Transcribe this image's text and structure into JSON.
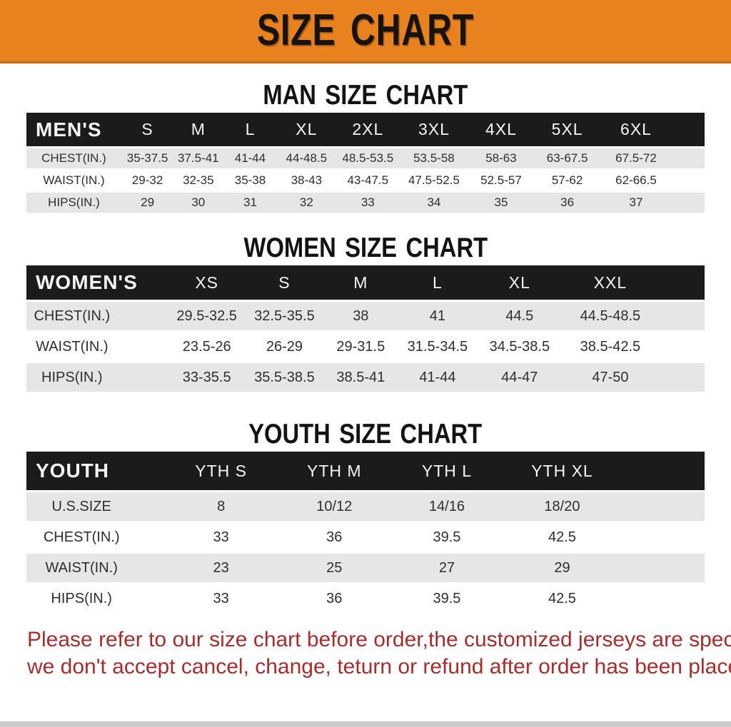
{
  "banner": {
    "title": "SIZE CHART"
  },
  "colors": {
    "banner-bg": "#e8821e",
    "banner-edge": "#cf6f12",
    "head-row-bg": "#1d1a1a",
    "stripe-bg": "#e6e6e6",
    "footer-red": "#aa2b2b",
    "bottom-bar": "#cccccc"
  },
  "sections": [
    {
      "heading": "MAN SIZE CHART",
      "table": {
        "header_label": "MEN'S",
        "columns": [
          "S",
          "M",
          "L",
          "XL",
          "2XL",
          "3XL",
          "4XL",
          "5XL",
          "6XL"
        ],
        "rows": [
          {
            "label": "CHEST(IN.)",
            "values": [
              "35-37.5",
              "37.5-41",
              "41-44",
              "44-48.5",
              "48.5-53.5",
              "53.5-58",
              "58-63",
              "63-67.5",
              "67.5-72"
            ]
          },
          {
            "label": "WAIST(IN.)",
            "values": [
              "29-32",
              "32-35",
              "35-38",
              "38-43",
              "43-47.5",
              "47.5-52.5",
              "52.5-57",
              "57-62",
              "62-66.5"
            ]
          },
          {
            "label": "HIPS(IN.)",
            "values": [
              "29",
              "30",
              "31",
              "32",
              "33",
              "34",
              "35",
              "36",
              "37"
            ]
          }
        ]
      }
    },
    {
      "heading": "WOMEN SIZE CHART",
      "table": {
        "header_label": "WOMEN'S",
        "columns": [
          "XS",
          "S",
          "M",
          "L",
          "XL",
          "XXL"
        ],
        "rows": [
          {
            "label": "CHEST(IN.)",
            "values": [
              "29.5-32.5",
              "32.5-35.5",
              "38",
              "41",
              "44.5",
              "44.5-48.5"
            ]
          },
          {
            "label": "WAIST(IN.)",
            "values": [
              "23.5-26",
              "26-29",
              "29-31.5",
              "31.5-34.5",
              "34.5-38.5",
              "38.5-42.5"
            ]
          },
          {
            "label": "HIPS(IN.)",
            "values": [
              "33-35.5",
              "35.5-38.5",
              "38.5-41",
              "41-44",
              "44-47",
              "47-50"
            ]
          }
        ]
      }
    },
    {
      "heading": "YOUTH SIZE CHART",
      "table": {
        "header_label": "YOUTH",
        "columns": [
          "YTH S",
          "YTH M",
          "YTH L",
          "YTH XL"
        ],
        "rows": [
          {
            "label": "U.S.SIZE",
            "values": [
              "8",
              "10/12",
              "14/16",
              "18/20"
            ]
          },
          {
            "label": "CHEST(IN.)",
            "values": [
              "33",
              "36",
              "39.5",
              "42.5"
            ]
          },
          {
            "label": "WAIST(IN.)",
            "values": [
              "23",
              "25",
              "27",
              "29"
            ]
          },
          {
            "label": "HIPS(IN.)",
            "values": [
              "33",
              "36",
              "39.5",
              "42.5"
            ]
          }
        ]
      }
    }
  ],
  "footer": {
    "line1": "Please refer to our size chart before order,the customized jerseys are special products,",
    "line2": "we don't accept cancel, change, teturn or refund after order has been placed!"
  }
}
